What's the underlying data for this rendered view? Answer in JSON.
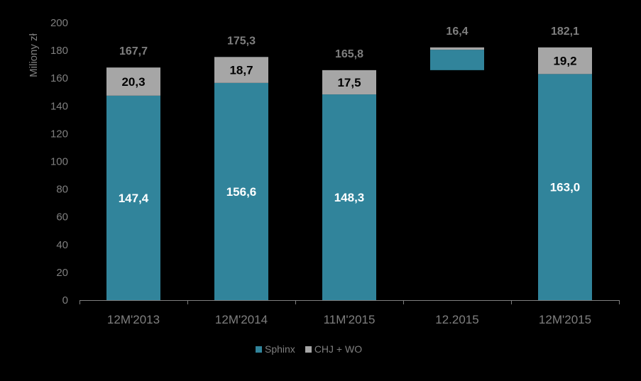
{
  "chart_data": {
    "type": "bar",
    "stacked": true,
    "waterfall": true,
    "ylabel": "Miliony zł",
    "ylim": [
      0,
      200
    ],
    "yticks": [
      0,
      20,
      40,
      60,
      80,
      100,
      120,
      140,
      160,
      180,
      200
    ],
    "categories": [
      "12M'2013",
      "12M'2014",
      "11M'2015",
      "12.2015",
      "12M'2015"
    ],
    "series": [
      {
        "name": "Sphinx",
        "color": "#31849b",
        "values": [
          147.4,
          156.6,
          148.3,
          14.7,
          163.0
        ],
        "labels": [
          "147,4",
          "156,6",
          "148,3",
          "",
          "163,0"
        ]
      },
      {
        "name": "CHJ + WO",
        "color": "#a6a6a6",
        "values": [
          20.3,
          18.7,
          17.5,
          1.7,
          19.2
        ],
        "labels": [
          "20,3",
          "18,7",
          "17,5",
          "",
          "19,2"
        ]
      }
    ],
    "base": [
      0,
      0,
      0,
      165.8,
      0
    ],
    "totals": [
      167.7,
      175.3,
      165.8,
      16.4,
      182.1
    ],
    "total_labels": [
      "167,7",
      "175,3",
      "165,8",
      "16,4",
      "182,1"
    ],
    "legend": {
      "position": "bottom",
      "entries": [
        "Sphinx",
        "CHJ + WO"
      ]
    },
    "grid": false
  }
}
